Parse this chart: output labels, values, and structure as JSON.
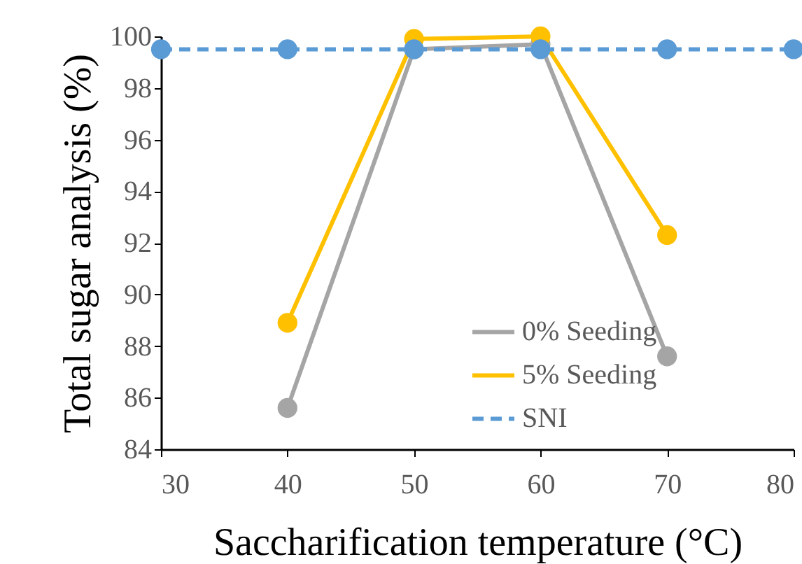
{
  "chart_data": {
    "type": "line",
    "xlabel": "Saccharification temperature (°C)",
    "ylabel": "Total sugar analysis (%)",
    "xlim": [
      30,
      80
    ],
    "xticks": [
      30,
      40,
      50,
      60,
      70,
      80
    ],
    "ylim": [
      84,
      100
    ],
    "yticks": [
      84,
      86,
      88,
      90,
      92,
      94,
      96,
      98,
      100
    ],
    "grid": false,
    "legend": "bottom",
    "marker": "circle",
    "series": [
      {
        "name": "0% Seeding",
        "color": "#a5a5a5",
        "line_style": "solid",
        "x": [
          40,
          50,
          60,
          70
        ],
        "values": [
          85.6,
          99.5,
          99.7,
          87.6
        ]
      },
      {
        "name": "5% Seeding",
        "color": "#ffc000",
        "line_style": "solid",
        "x": [
          40,
          50,
          60,
          70
        ],
        "values": [
          88.9,
          99.9,
          100.0,
          92.3
        ]
      },
      {
        "name": "SNI",
        "color": "#5b9bd5",
        "line_style": "dashed",
        "x": [
          30,
          40,
          50,
          60,
          70,
          80
        ],
        "values": [
          99.5,
          99.5,
          99.5,
          99.5,
          99.5,
          99.5
        ]
      }
    ]
  }
}
